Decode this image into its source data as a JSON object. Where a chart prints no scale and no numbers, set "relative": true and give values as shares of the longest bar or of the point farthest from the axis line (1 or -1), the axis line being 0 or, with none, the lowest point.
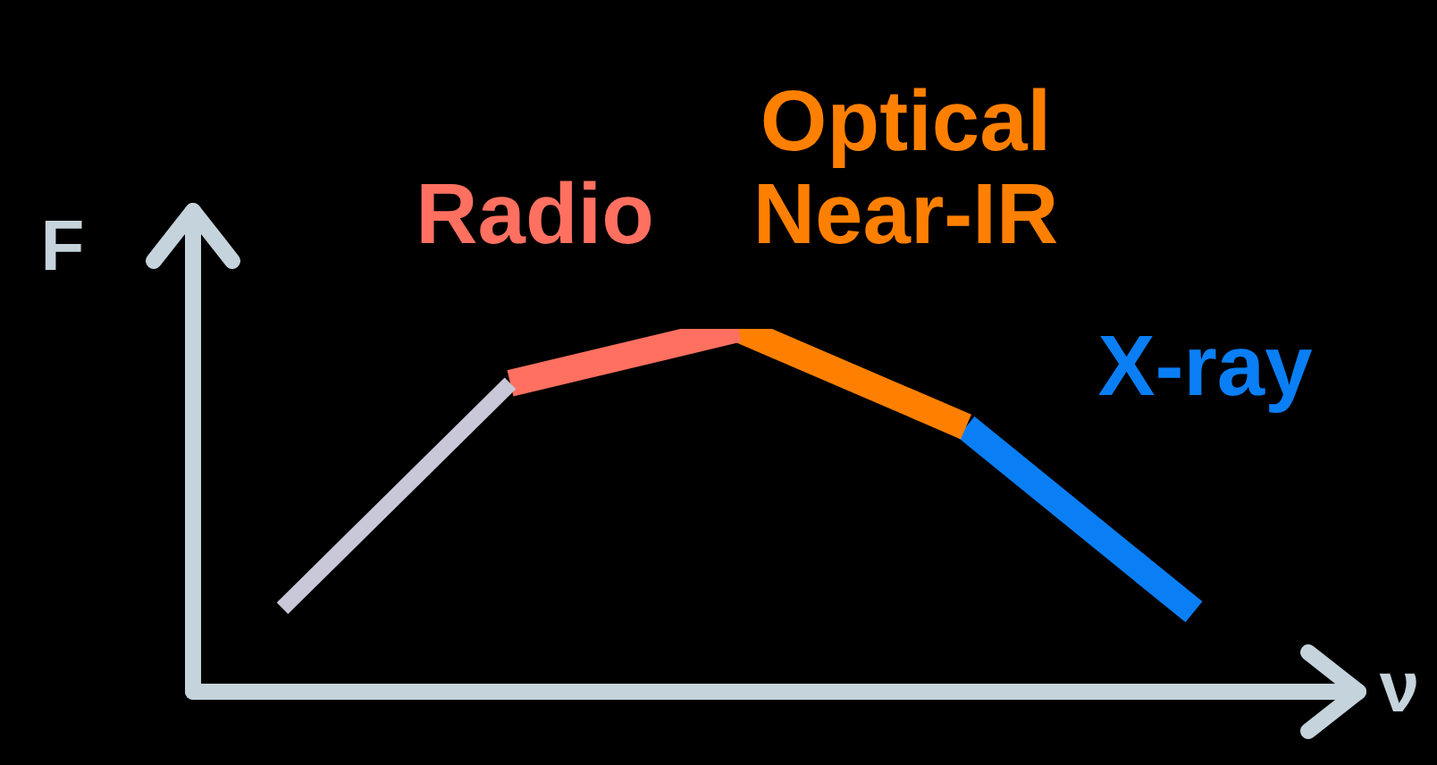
{
  "chart_data": {
    "type": "line",
    "relative": true,
    "xlabel": "ν",
    "ylabel": "F",
    "categories": [
      null,
      null,
      null,
      null,
      null
    ],
    "tick_labels": false,
    "marker": "none",
    "grid": false,
    "legend": false,
    "series": [
      {
        "color": "#c8c8d8",
        "values": [
          0.23,
          0.85,
          null,
          null,
          null
        ]
      },
      {
        "name": "Radio",
        "color": "#ff7060",
        "values": [
          null,
          0.85,
          1,
          null,
          null
        ]
      },
      {
        "name": "Optical Near-IR",
        "color": "#ff8000",
        "values": [
          null,
          null,
          1,
          0.73,
          null
        ]
      },
      {
        "name": "X-ray",
        "color": "#0a7ff5",
        "values": [
          null,
          null,
          null,
          0.73,
          0.22
        ]
      }
    ]
  }
}
